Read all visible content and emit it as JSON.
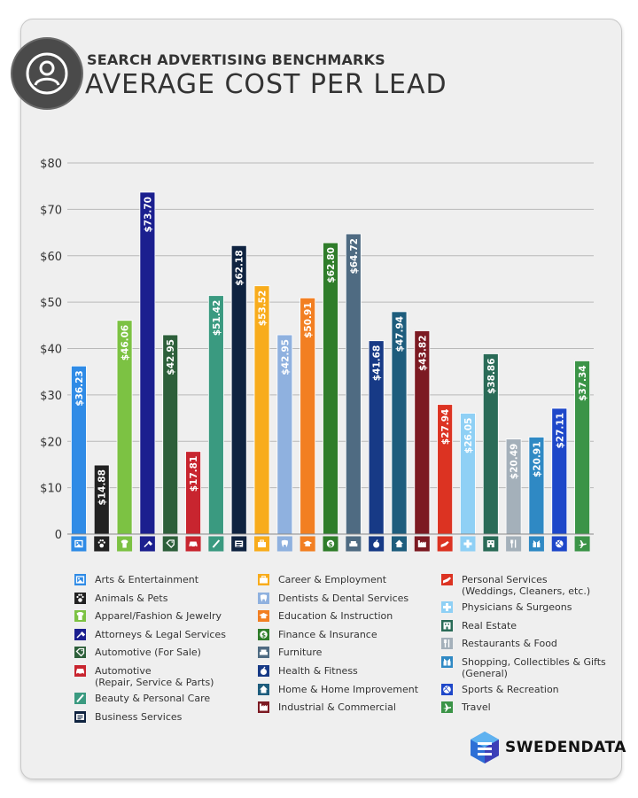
{
  "header": {
    "subtitle": "SEARCH ADVERTISING BENCHMARKS",
    "title": "AVERAGE COST PER LEAD"
  },
  "brand": {
    "name": "SWEDENDATA"
  },
  "chart_data": {
    "type": "bar",
    "title": "AVERAGE COST PER LEAD",
    "ylim": [
      0,
      80
    ],
    "yticks": [
      "0",
      "$10",
      "$20",
      "$30",
      "$40",
      "$50",
      "$60",
      "$70",
      "$80"
    ],
    "grid": true,
    "legend_position": "bottom",
    "categories": [
      {
        "name": "Arts & Entertainment",
        "value": 36.23,
        "label": "$36.23",
        "color": "#2f8be6",
        "icon": "image-icon"
      },
      {
        "name": "Animals & Pets",
        "value": 14.88,
        "label": "$14.88",
        "color": "#222222",
        "icon": "paw-icon"
      },
      {
        "name": "Apparel/Fashion & Jewelry",
        "value": 46.06,
        "label": "$46.06",
        "color": "#7cc243",
        "icon": "shirt-icon"
      },
      {
        "name": "Attorneys & Legal Services",
        "value": 73.7,
        "label": "$73.70",
        "color": "#1b1f8f",
        "icon": "gavel-icon"
      },
      {
        "name": "Automotive (For Sale)",
        "value": 42.95,
        "label": "$42.95",
        "color": "#2d5f3a",
        "icon": "tag-icon"
      },
      {
        "name": "Automotive\n(Repair, Service & Parts)",
        "value": 17.81,
        "label": "$17.81",
        "color": "#c8252f",
        "icon": "car-icon"
      },
      {
        "name": "Beauty & Personal Care",
        "value": 51.42,
        "label": "$51.42",
        "color": "#3a9a80",
        "icon": "brush-icon"
      },
      {
        "name": "Business Services",
        "value": 62.18,
        "label": "$62.18",
        "color": "#0f2340",
        "icon": "newspaper-icon"
      },
      {
        "name": "Career & Employment",
        "value": 53.52,
        "label": "$53.52",
        "color": "#f8ac1c",
        "icon": "briefcase-icon"
      },
      {
        "name": "Dentists & Dental Services",
        "value": 42.95,
        "label": "$42.95",
        "color": "#8fb1df",
        "icon": "tooth-icon"
      },
      {
        "name": "Education & Instruction",
        "value": 50.91,
        "label": "$50.91",
        "color": "#f27f22",
        "icon": "graduation-cap-icon"
      },
      {
        "name": "Finance & Insurance",
        "value": 62.8,
        "label": "$62.80",
        "color": "#2f7d2a",
        "icon": "money-icon"
      },
      {
        "name": "Furniture",
        "value": 64.72,
        "label": "$64.72",
        "color": "#4f6b82",
        "icon": "sofa-icon"
      },
      {
        "name": "Health & Fitness",
        "value": 41.68,
        "label": "$41.68",
        "color": "#173a86",
        "icon": "apple-icon"
      },
      {
        "name": "Home & Home Improvement",
        "value": 47.94,
        "label": "$47.94",
        "color": "#1e5d7d",
        "icon": "house-icon"
      },
      {
        "name": "Industrial & Commercial",
        "value": 43.82,
        "label": "$43.82",
        "color": "#7c1a22",
        "icon": "factory-icon"
      },
      {
        "name": "Personal Services\n(Weddings, Cleaners, etc.)",
        "value": 27.94,
        "label": "$27.94",
        "color": "#dc3322",
        "icon": "hand-icon"
      },
      {
        "name": "Physicians & Surgeons",
        "value": 26.05,
        "label": "$26.05",
        "color": "#8fd0f5",
        "icon": "medical-cross-icon"
      },
      {
        "name": "Real Estate",
        "value": 38.86,
        "label": "$38.86",
        "color": "#2a6b57",
        "icon": "building-icon"
      },
      {
        "name": "Restaurants & Food",
        "value": 20.49,
        "label": "$20.49",
        "color": "#a4b0ba",
        "icon": "fork-knife-icon"
      },
      {
        "name": "Shopping, Collectibles & Gifts\n(General)",
        "value": 20.91,
        "label": "$20.91",
        "color": "#2f89c4",
        "icon": "gift-icon"
      },
      {
        "name": "Sports & Recreation",
        "value": 27.11,
        "label": "$27.11",
        "color": "#1e47c9",
        "icon": "ball-icon"
      },
      {
        "name": "Travel",
        "value": 37.34,
        "label": "$37.34",
        "color": "#3b9447",
        "icon": "plane-icon"
      }
    ]
  }
}
